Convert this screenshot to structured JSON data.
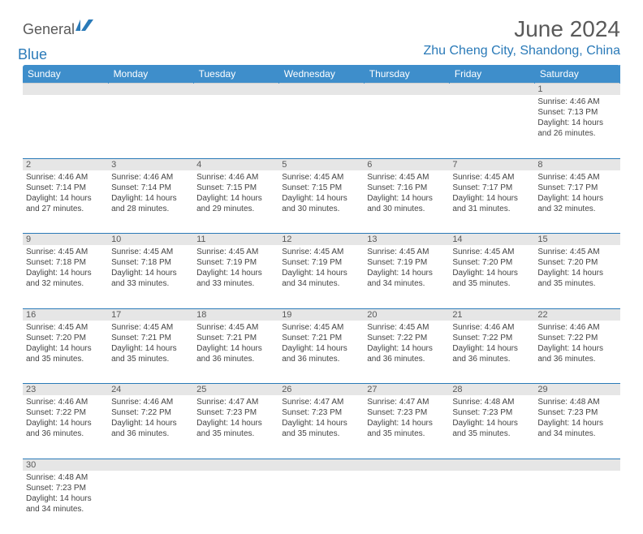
{
  "logo": {
    "brand_a": "General",
    "brand_b": "Blue"
  },
  "title": "June 2024",
  "location": "Zhu Cheng City, Shandong, China",
  "colors": {
    "header_bg": "#3e8ecb",
    "accent": "#2a7ab8",
    "daynum_bg": "#e6e6e6",
    "text": "#444444",
    "muted": "#5a5a5a"
  },
  "weekdays": [
    "Sunday",
    "Monday",
    "Tuesday",
    "Wednesday",
    "Thursday",
    "Friday",
    "Saturday"
  ],
  "weeks": [
    [
      null,
      null,
      null,
      null,
      null,
      null,
      {
        "n": "1",
        "sr": "4:46 AM",
        "ss": "7:13 PM",
        "dl": "14 hours and 26 minutes."
      }
    ],
    [
      {
        "n": "2",
        "sr": "4:46 AM",
        "ss": "7:14 PM",
        "dl": "14 hours and 27 minutes."
      },
      {
        "n": "3",
        "sr": "4:46 AM",
        "ss": "7:14 PM",
        "dl": "14 hours and 28 minutes."
      },
      {
        "n": "4",
        "sr": "4:46 AM",
        "ss": "7:15 PM",
        "dl": "14 hours and 29 minutes."
      },
      {
        "n": "5",
        "sr": "4:45 AM",
        "ss": "7:15 PM",
        "dl": "14 hours and 30 minutes."
      },
      {
        "n": "6",
        "sr": "4:45 AM",
        "ss": "7:16 PM",
        "dl": "14 hours and 30 minutes."
      },
      {
        "n": "7",
        "sr": "4:45 AM",
        "ss": "7:17 PM",
        "dl": "14 hours and 31 minutes."
      },
      {
        "n": "8",
        "sr": "4:45 AM",
        "ss": "7:17 PM",
        "dl": "14 hours and 32 minutes."
      }
    ],
    [
      {
        "n": "9",
        "sr": "4:45 AM",
        "ss": "7:18 PM",
        "dl": "14 hours and 32 minutes."
      },
      {
        "n": "10",
        "sr": "4:45 AM",
        "ss": "7:18 PM",
        "dl": "14 hours and 33 minutes."
      },
      {
        "n": "11",
        "sr": "4:45 AM",
        "ss": "7:19 PM",
        "dl": "14 hours and 33 minutes."
      },
      {
        "n": "12",
        "sr": "4:45 AM",
        "ss": "7:19 PM",
        "dl": "14 hours and 34 minutes."
      },
      {
        "n": "13",
        "sr": "4:45 AM",
        "ss": "7:19 PM",
        "dl": "14 hours and 34 minutes."
      },
      {
        "n": "14",
        "sr": "4:45 AM",
        "ss": "7:20 PM",
        "dl": "14 hours and 35 minutes."
      },
      {
        "n": "15",
        "sr": "4:45 AM",
        "ss": "7:20 PM",
        "dl": "14 hours and 35 minutes."
      }
    ],
    [
      {
        "n": "16",
        "sr": "4:45 AM",
        "ss": "7:20 PM",
        "dl": "14 hours and 35 minutes."
      },
      {
        "n": "17",
        "sr": "4:45 AM",
        "ss": "7:21 PM",
        "dl": "14 hours and 35 minutes."
      },
      {
        "n": "18",
        "sr": "4:45 AM",
        "ss": "7:21 PM",
        "dl": "14 hours and 36 minutes."
      },
      {
        "n": "19",
        "sr": "4:45 AM",
        "ss": "7:21 PM",
        "dl": "14 hours and 36 minutes."
      },
      {
        "n": "20",
        "sr": "4:45 AM",
        "ss": "7:22 PM",
        "dl": "14 hours and 36 minutes."
      },
      {
        "n": "21",
        "sr": "4:46 AM",
        "ss": "7:22 PM",
        "dl": "14 hours and 36 minutes."
      },
      {
        "n": "22",
        "sr": "4:46 AM",
        "ss": "7:22 PM",
        "dl": "14 hours and 36 minutes."
      }
    ],
    [
      {
        "n": "23",
        "sr": "4:46 AM",
        "ss": "7:22 PM",
        "dl": "14 hours and 36 minutes."
      },
      {
        "n": "24",
        "sr": "4:46 AM",
        "ss": "7:22 PM",
        "dl": "14 hours and 36 minutes."
      },
      {
        "n": "25",
        "sr": "4:47 AM",
        "ss": "7:23 PM",
        "dl": "14 hours and 35 minutes."
      },
      {
        "n": "26",
        "sr": "4:47 AM",
        "ss": "7:23 PM",
        "dl": "14 hours and 35 minutes."
      },
      {
        "n": "27",
        "sr": "4:47 AM",
        "ss": "7:23 PM",
        "dl": "14 hours and 35 minutes."
      },
      {
        "n": "28",
        "sr": "4:48 AM",
        "ss": "7:23 PM",
        "dl": "14 hours and 35 minutes."
      },
      {
        "n": "29",
        "sr": "4:48 AM",
        "ss": "7:23 PM",
        "dl": "14 hours and 34 minutes."
      }
    ],
    [
      {
        "n": "30",
        "sr": "4:48 AM",
        "ss": "7:23 PM",
        "dl": "14 hours and 34 minutes."
      },
      null,
      null,
      null,
      null,
      null,
      null
    ]
  ],
  "labels": {
    "sunrise": "Sunrise:",
    "sunset": "Sunset:",
    "daylight": "Daylight:"
  }
}
